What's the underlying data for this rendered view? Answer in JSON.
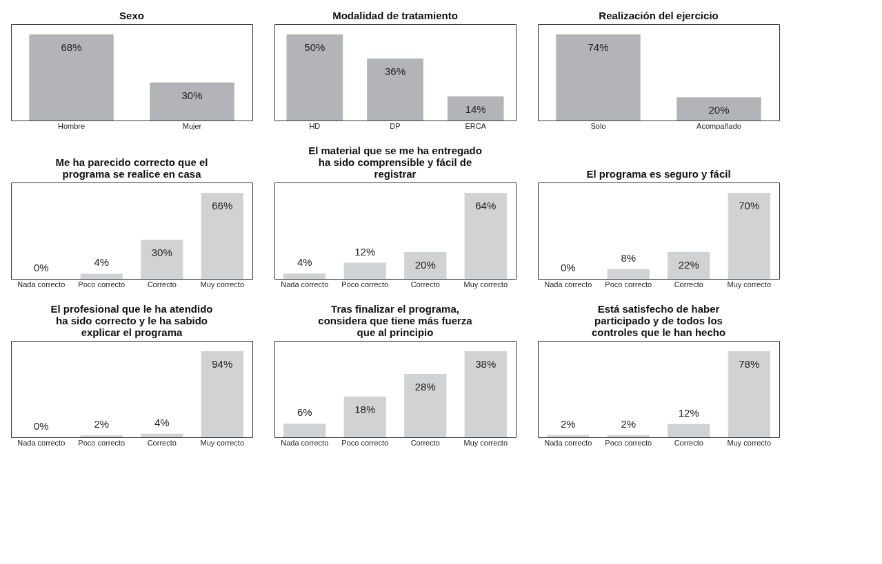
{
  "chart_data": [
    {
      "type": "bar",
      "title": "Sexo",
      "categories": [
        "Hombre",
        "Mujer"
      ],
      "values": [
        68,
        30
      ],
      "color": "#b3b4b7",
      "value_labels": [
        "68%",
        "30%"
      ]
    },
    {
      "type": "bar",
      "title": "Modalidad de tratamiento",
      "categories": [
        "HD",
        "DP",
        "ERCA"
      ],
      "values": [
        50,
        36,
        14
      ],
      "color": "#b3b4b7",
      "value_labels": [
        "50%",
        "36%",
        "14%"
      ]
    },
    {
      "type": "bar",
      "title": "Realización del ejercicio",
      "categories": [
        "Solo",
        "Acompañado"
      ],
      "values": [
        74,
        20
      ],
      "color": "#b3b4b7",
      "value_labels": [
        "74%",
        "20%"
      ]
    },
    {
      "type": "bar",
      "title": "Me ha parecido correcto que el\nprograma se realice en casa",
      "categories": [
        "Nada correcto",
        "Poco correcto",
        "Correcto",
        "Muy correcto"
      ],
      "values": [
        0,
        4,
        30,
        66
      ],
      "color": "#d1d2d4",
      "value_labels": [
        "0%",
        "4%",
        "30%",
        "66%"
      ]
    },
    {
      "type": "bar",
      "title": "El material que se me ha entregado\nha sido comprensible y fácil de\nregistrar",
      "categories": [
        "Nada correcto",
        "Poco correcto",
        "Correcto",
        "Muy correcto"
      ],
      "values": [
        4,
        12,
        20,
        64
      ],
      "color": "#d1d2d4",
      "value_labels": [
        "4%",
        "12%",
        "20%",
        "64%"
      ]
    },
    {
      "type": "bar",
      "title": "El programa es seguro y fácil",
      "categories": [
        "Nada correcto",
        "Poco correcto",
        "Correcto",
        "Muy correcto"
      ],
      "values": [
        0,
        8,
        22,
        70
      ],
      "color": "#d1d2d4",
      "value_labels": [
        "0%",
        "8%",
        "22%",
        "70%"
      ]
    },
    {
      "type": "bar",
      "title": "El profesional que le ha atendido\nha sido correcto y le ha sabido\nexplicar el programa",
      "categories": [
        "Nada correcto",
        "Poco correcto",
        "Correcto",
        "Muy correcto"
      ],
      "values": [
        0,
        2,
        4,
        94
      ],
      "color": "#d1d2d4",
      "value_labels": [
        "0%",
        "2%",
        "4%",
        "94%"
      ]
    },
    {
      "type": "bar",
      "title": "Tras finalizar el programa,\nconsidera que tiene más fuerza\nque al principio",
      "categories": [
        "Nada correcto",
        "Poco correcto",
        "Correcto",
        "Muy correcto"
      ],
      "values": [
        6,
        18,
        28,
        38
      ],
      "color": "#d1d2d4",
      "value_labels": [
        "6%",
        "18%",
        "28%",
        "38%"
      ]
    },
    {
      "type": "bar",
      "title": "Está satisfecho de haber\nparticipado y de todos los\ncontroles que le han hecho",
      "categories": [
        "Nada correcto",
        "Poco correcto",
        "Correcto",
        "Muy correcto"
      ],
      "values": [
        2,
        2,
        12,
        78
      ],
      "color": "#d1d2d4",
      "value_labels": [
        "2%",
        "2%",
        "12%",
        "78%"
      ]
    }
  ]
}
